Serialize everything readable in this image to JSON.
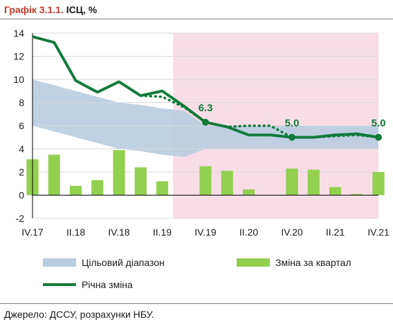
{
  "header": {
    "number": "Графік 3.1.1.",
    "name": "ІСЦ, %"
  },
  "legend": {
    "band": "Цільовий діапазон",
    "bars": "Зміна за квартал",
    "line": "Річна зміна"
  },
  "source": "Джерело: ДССУ, розрахунки НБУ.",
  "colors": {
    "band": "#b8cde0",
    "bars": "#92d050",
    "line": "#117a3c",
    "forecast_shade": "#f9dde6"
  },
  "chart_data": {
    "type": "bar",
    "categories": [
      "IV.17",
      "I.18",
      "II.18",
      "III.18",
      "IV.18",
      "I.19",
      "II.19",
      "III.19",
      "IV.19",
      "I.20",
      "II.20",
      "III.20",
      "IV.20",
      "I.21",
      "II.21",
      "III.21",
      "IV.21"
    ],
    "x_tick_labels": [
      "IV.17",
      "II.18",
      "IV.18",
      "II.19",
      "IV.19",
      "II.20",
      "IV.20",
      "II.21",
      "IV.21"
    ],
    "ylim": [
      -2,
      14
    ],
    "yticks": [
      -2,
      0,
      2,
      4,
      6,
      8,
      10,
      12,
      14
    ],
    "forecast_start": "III.19",
    "series": [
      {
        "name": "Зміна за квартал",
        "type": "bar",
        "values": [
          3.1,
          3.5,
          0.8,
          1.3,
          3.9,
          2.4,
          1.2,
          null,
          2.5,
          2.1,
          0.5,
          null,
          2.3,
          2.2,
          0.7,
          0.1,
          2.0
        ]
      },
      {
        "name": "Річна зміна",
        "type": "line",
        "values": [
          13.7,
          13.2,
          9.9,
          8.9,
          9.8,
          8.6,
          9.0,
          7.7,
          6.3,
          5.9,
          5.2,
          5.2,
          5.0,
          5.0,
          5.2,
          5.3,
          5.0
        ]
      },
      {
        "name": "Річна зміна",
        "type": "line-dotted",
        "values": [
          null,
          null,
          null,
          null,
          null,
          8.6,
          8.5,
          7.6,
          6.3,
          5.9,
          6.0,
          6.0,
          5.0,
          5.0,
          5.1,
          5.2,
          5.0
        ]
      },
      {
        "name": "Цільовий діапазон",
        "type": "band",
        "lower": [
          6.0,
          5.5,
          5.0,
          4.5,
          4.0,
          3.8,
          3.5,
          3.3,
          4.0,
          4.0,
          4.0,
          4.0,
          4.0,
          4.0,
          4.0,
          4.0,
          4.0
        ],
        "upper": [
          10.0,
          9.5,
          9.0,
          8.5,
          8.0,
          7.8,
          7.5,
          7.3,
          6.0,
          6.0,
          6.0,
          6.0,
          6.0,
          6.0,
          6.0,
          6.0,
          6.0
        ]
      }
    ],
    "annotations": [
      {
        "x": "IV.19",
        "y": 6.3,
        "text": "6.3"
      },
      {
        "x": "IV.20",
        "y": 5.0,
        "text": "5.0"
      },
      {
        "x": "IV.21",
        "y": 5.0,
        "text": "5.0"
      }
    ]
  }
}
